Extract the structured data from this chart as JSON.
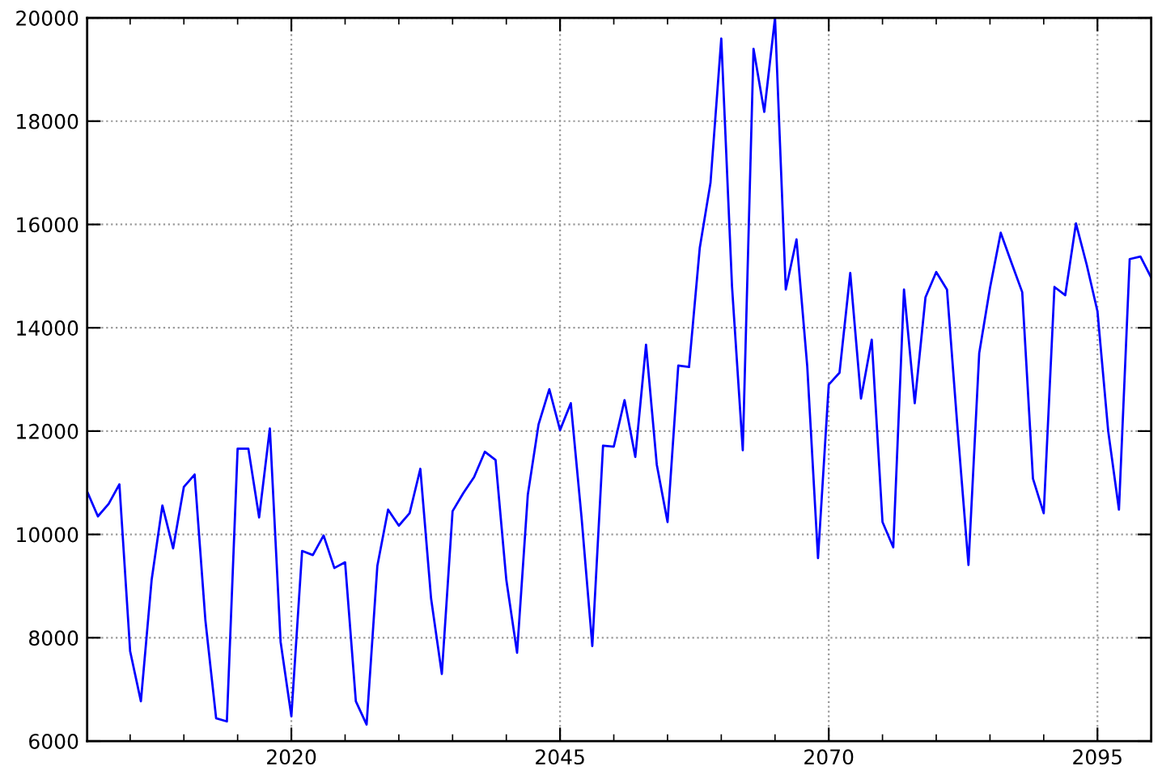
{
  "chart_data": {
    "type": "line",
    "x": [
      2001,
      2002,
      2003,
      2004,
      2005,
      2006,
      2007,
      2008,
      2009,
      2010,
      2011,
      2012,
      2013,
      2014,
      2015,
      2016,
      2017,
      2018,
      2019,
      2020,
      2021,
      2022,
      2023,
      2024,
      2025,
      2026,
      2027,
      2028,
      2029,
      2030,
      2031,
      2032,
      2033,
      2034,
      2035,
      2036,
      2037,
      2038,
      2039,
      2040,
      2041,
      2042,
      2043,
      2044,
      2045,
      2046,
      2047,
      2048,
      2049,
      2050,
      2051,
      2052,
      2053,
      2054,
      2055,
      2056,
      2057,
      2058,
      2059,
      2060,
      2061,
      2062,
      2063,
      2064,
      2065,
      2066,
      2067,
      2068,
      2069,
      2070,
      2071,
      2072,
      2073,
      2074,
      2075,
      2076,
      2077,
      2078,
      2079,
      2080,
      2081,
      2082,
      2083,
      2084,
      2085,
      2086,
      2087,
      2088,
      2089,
      2090,
      2091,
      2092,
      2093,
      2094,
      2095,
      2096,
      2097,
      2098,
      2099,
      2100
    ],
    "series": [
      {
        "color": "#0000ff",
        "values": [
          10830,
          10350,
          10590,
          10970,
          7740,
          6770,
          9120,
          10560,
          9730,
          10920,
          11160,
          8340,
          6440,
          6380,
          11660,
          11660,
          10330,
          12050,
          7920,
          6480,
          9680,
          9600,
          9980,
          9350,
          9460,
          6770,
          6320,
          9390,
          10480,
          10170,
          10410,
          11270,
          8760,
          7300,
          10450,
          10800,
          11110,
          11600,
          11440,
          9120,
          7710,
          10770,
          12130,
          12810,
          12020,
          12540,
          10330,
          7840,
          11720,
          11700,
          12600,
          11500,
          13670,
          11350,
          10240,
          13270,
          13240,
          15550,
          16810,
          19600,
          14800,
          11630,
          19400,
          18180,
          20000,
          14740,
          15710,
          13250,
          9540,
          12900,
          13130,
          15060,
          12630,
          13770,
          10240,
          9750,
          14740,
          12540,
          14590,
          15080,
          14740,
          12000,
          9410,
          13510,
          14770,
          15840,
          15260,
          14690,
          11080,
          10410,
          14790,
          14630,
          16020,
          15220,
          14320,
          12000,
          10480,
          15330,
          15380,
          14970
        ]
      }
    ],
    "xlim": [
      2001,
      2100
    ],
    "xticks": [
      {
        "value": 2005,
        "label": null
      },
      {
        "value": 2010,
        "label": null
      },
      {
        "value": 2015,
        "label": null
      },
      2020,
      {
        "value": 2025,
        "label": null
      },
      {
        "value": 2030,
        "label": null
      },
      {
        "value": 2035,
        "label": null
      },
      {
        "value": 2040,
        "label": null
      },
      2045,
      {
        "value": 2050,
        "label": null
      },
      {
        "value": 2055,
        "label": null
      },
      {
        "value": 2060,
        "label": null
      },
      {
        "value": 2065,
        "label": null
      },
      2070,
      {
        "value": 2075,
        "label": null
      },
      {
        "value": 2080,
        "label": null
      },
      {
        "value": 2085,
        "label": null
      },
      {
        "value": 2090,
        "label": null
      },
      2095,
      {
        "value": 2100,
        "label": null
      }
    ],
    "ylim": [
      6000,
      20000
    ],
    "yticks": [
      6000,
      8000,
      10000,
      12000,
      14000,
      16000,
      18000,
      20000
    ],
    "grid": true,
    "line_style": "solid"
  }
}
